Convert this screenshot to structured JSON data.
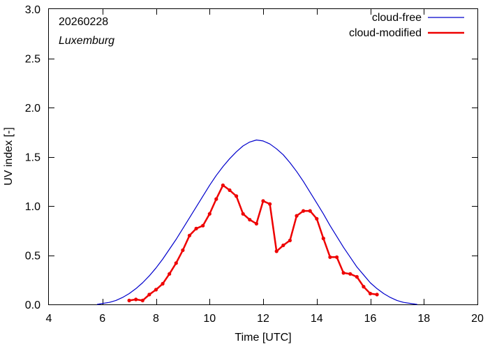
{
  "chart_data": {
    "type": "line",
    "title": "",
    "xlabel": "Time  [UTC]",
    "ylabel": "UV index  [-]",
    "xlim": [
      4,
      20
    ],
    "ylim": [
      0,
      3.0
    ],
    "xticks": [
      4,
      6,
      8,
      10,
      12,
      14,
      16,
      18,
      20
    ],
    "xtick_labels": [
      "4",
      "6",
      "8",
      "10",
      "12",
      "14",
      "16",
      "18",
      "20"
    ],
    "yticks": [
      0,
      0.5,
      1.0,
      1.5,
      2.0,
      2.5,
      3.0
    ],
    "ytick_labels": [
      "0.0",
      "0.5",
      "1.0",
      "1.5",
      "2.0",
      "2.5",
      "3.0"
    ],
    "grid": false,
    "legend_position": "top-right",
    "annotations": {
      "date": "20260228",
      "location": "Luxemburg"
    },
    "series": [
      {
        "name": "cloud-free",
        "color": "#0000cc",
        "markers": false,
        "x": [
          5.8,
          6.0,
          6.25,
          6.5,
          6.75,
          7.0,
          7.25,
          7.5,
          7.75,
          8.0,
          8.25,
          8.5,
          8.75,
          9.0,
          9.25,
          9.5,
          9.75,
          10.0,
          10.25,
          10.5,
          10.75,
          11.0,
          11.25,
          11.5,
          11.75,
          12.0,
          12.25,
          12.5,
          12.75,
          13.0,
          13.25,
          13.5,
          13.75,
          14.0,
          14.25,
          14.5,
          14.75,
          15.0,
          15.25,
          15.5,
          15.75,
          16.0,
          16.25,
          16.5,
          16.75,
          17.0,
          17.25,
          17.5,
          17.75
        ],
        "values": [
          0.0,
          0.01,
          0.02,
          0.04,
          0.07,
          0.11,
          0.16,
          0.22,
          0.29,
          0.37,
          0.46,
          0.56,
          0.66,
          0.77,
          0.88,
          0.99,
          1.1,
          1.21,
          1.31,
          1.4,
          1.48,
          1.55,
          1.61,
          1.65,
          1.67,
          1.66,
          1.63,
          1.58,
          1.52,
          1.44,
          1.35,
          1.25,
          1.14,
          1.03,
          0.92,
          0.8,
          0.69,
          0.58,
          0.48,
          0.38,
          0.3,
          0.22,
          0.16,
          0.11,
          0.07,
          0.04,
          0.02,
          0.01,
          0.0
        ]
      },
      {
        "name": "cloud-modified",
        "color": "#ee0000",
        "markers": true,
        "x": [
          7.0,
          7.25,
          7.5,
          7.75,
          8.0,
          8.25,
          8.5,
          8.75,
          9.0,
          9.25,
          9.5,
          9.75,
          10.0,
          10.25,
          10.5,
          10.75,
          11.0,
          11.25,
          11.5,
          11.75,
          12.0,
          12.25,
          12.5,
          12.75,
          13.0,
          13.25,
          13.5,
          13.75,
          14.0,
          14.25,
          14.5,
          14.75,
          15.0,
          15.25,
          15.5,
          15.75,
          16.0,
          16.25
        ],
        "values": [
          0.04,
          0.05,
          0.04,
          0.1,
          0.15,
          0.21,
          0.31,
          0.42,
          0.55,
          0.7,
          0.77,
          0.8,
          0.92,
          1.07,
          1.21,
          1.16,
          1.1,
          0.92,
          0.86,
          0.82,
          1.05,
          1.02,
          0.54,
          0.6,
          0.65,
          0.9,
          0.95,
          0.95,
          0.87,
          0.67,
          0.48,
          0.48,
          0.32,
          0.31,
          0.28,
          0.18,
          0.11,
          0.1
        ]
      }
    ]
  }
}
